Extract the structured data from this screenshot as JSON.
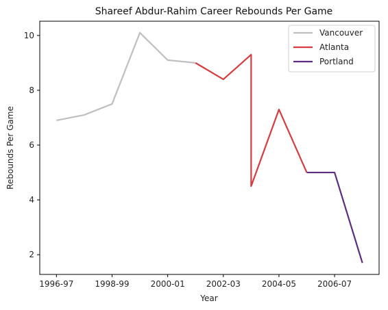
{
  "chart_data": {
    "type": "line",
    "title": "Shareef Abdur-Rahim Career Rebounds Per Game",
    "xlabel": "Year",
    "ylabel": "Rebounds Per Game",
    "x_ticks": [
      {
        "value": 0,
        "label": "1996-97"
      },
      {
        "value": 2,
        "label": "1998-99"
      },
      {
        "value": 4,
        "label": "2000-01"
      },
      {
        "value": 6,
        "label": "2002-03"
      },
      {
        "value": 8,
        "label": "2004-05"
      },
      {
        "value": 10,
        "label": "2006-07"
      }
    ],
    "y_ticks": [
      2,
      4,
      6,
      8,
      10
    ],
    "xlim": [
      -0.6,
      11.6
    ],
    "ylim": [
      1.28,
      10.52
    ],
    "grid": false,
    "legend_position": "top-right",
    "series": [
      {
        "name": "Vancouver",
        "color": "#bfbfbf",
        "points": [
          [
            0,
            6.9
          ],
          [
            1,
            7.1
          ],
          [
            2,
            7.5
          ],
          [
            3,
            10.1
          ],
          [
            4,
            9.1
          ],
          [
            5,
            9.0
          ]
        ]
      },
      {
        "name": "Atlanta",
        "color": "#d93a3f",
        "points": [
          [
            5,
            9.0
          ],
          [
            6,
            8.4
          ],
          [
            7,
            9.3
          ],
          [
            7,
            4.5
          ],
          [
            8,
            7.3
          ],
          [
            9,
            5.0
          ]
        ]
      },
      {
        "name": "Portland",
        "color": "#5b2d82",
        "points": [
          [
            9,
            5.0
          ],
          [
            10,
            5.0
          ],
          [
            11,
            1.7
          ]
        ]
      }
    ]
  }
}
